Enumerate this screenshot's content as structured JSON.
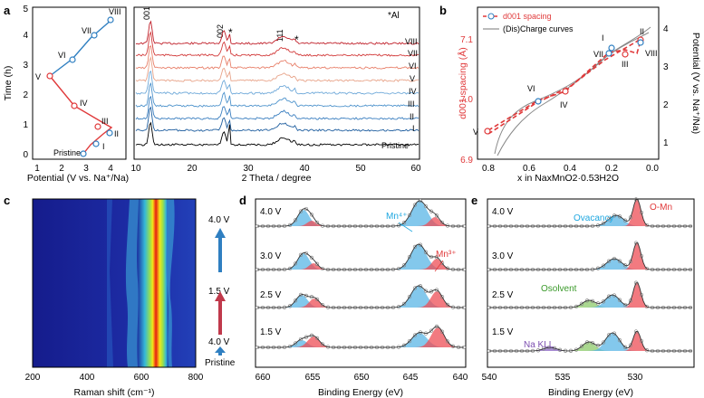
{
  "panels": {
    "a": {
      "label": "a",
      "left": {
        "ylabel": "Time (h)",
        "xlabel": "Potential (V vs. Na⁺/Na)",
        "xticks": [
          "1",
          "2",
          "3",
          "4"
        ],
        "yticks": [
          "0",
          "1",
          "2",
          "3",
          "4",
          "5"
        ],
        "points": [
          "Pristine",
          "I",
          "II",
          "III",
          "IV",
          "V",
          "VI",
          "VII",
          "VIII"
        ]
      },
      "right": {
        "xlabel": "2 Theta / degree",
        "xticks": [
          "10",
          "20",
          "30",
          "40",
          "50",
          "60"
        ],
        "legend": "*Al",
        "peaks": [
          "001",
          "002",
          "*",
          "111",
          "*"
        ],
        "curves": [
          "VIII",
          "VII",
          "VI",
          "V",
          "IV",
          "III",
          "II",
          "I",
          "Pristine"
        ]
      }
    },
    "b": {
      "label": "b",
      "legend1": "d001 spacing",
      "legend2": "(Dis)Charge curves",
      "ylabel": "d001 spacing (Å)",
      "ylabel2": "Potential (V vs. Na⁺/Na)",
      "xlabel": "x in NaxMnO2·0.53H2O",
      "xticks": [
        "0.8",
        "0.6",
        "0.4",
        "0.2",
        "0.0"
      ],
      "yticks": [
        "6.9",
        "7.0",
        "7.1"
      ],
      "yticks2": [
        "1",
        "2",
        "3",
        "4"
      ],
      "points": [
        "V",
        "VI",
        "IV",
        "VII",
        "I",
        "III",
        "II",
        "VIII"
      ]
    },
    "c": {
      "label": "c",
      "xlabel": "Raman shift (cm⁻¹)",
      "xticks": [
        "200",
        "400",
        "600",
        "800"
      ],
      "voltages": [
        "4.0 V",
        "1.5 V",
        "4.0 V",
        "Pristine"
      ]
    },
    "d": {
      "label": "d",
      "xlabel": "Binding Energy (eV)",
      "xticks": [
        "660",
        "655",
        "650",
        "645",
        "640"
      ],
      "voltages": [
        "4.0 V",
        "3.0 V",
        "2.5 V",
        "1.5 V"
      ],
      "annotations": [
        "Mn⁴⁺",
        "Mn³⁺"
      ]
    },
    "e": {
      "label": "e",
      "xlabel": "Binding Energy (eV)",
      "xticks": [
        "540",
        "535",
        "530"
      ],
      "voltages": [
        "4.0 V",
        "3.0 V",
        "2.5 V",
        "1.5 V"
      ],
      "annotations": [
        "O-Mn",
        "Ovacancy",
        "Osolvent",
        "Na KLL"
      ]
    }
  },
  "colors": {
    "red": "#e0393a",
    "blue": "#2f7fc1",
    "lightblue": "#5ab4e5",
    "green": "#7fbf5a",
    "purple": "#7c4fb0"
  }
}
